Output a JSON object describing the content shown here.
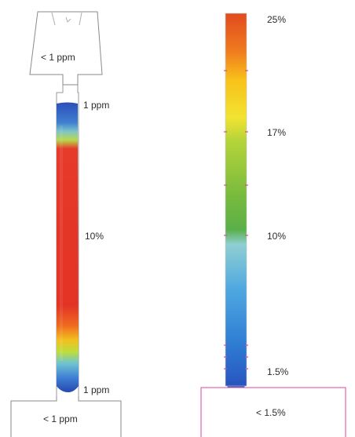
{
  "left_column": {
    "top_label": "< 1 ppm",
    "upper_end_label": "1 ppm",
    "middle_label": "10%",
    "lower_end_label": "1 ppm",
    "bottom_label": "< 1 ppm"
  },
  "right_column": {
    "label_top": "25%",
    "label_second": "17%",
    "label_third": "10%",
    "label_bottom_end": "1.5%",
    "bottom_box_label": "< 1.5%"
  },
  "colors": {
    "outline": "#8a8a8a",
    "right_box_outline": "#e0459a",
    "tick_marks": "#e0459a"
  }
}
